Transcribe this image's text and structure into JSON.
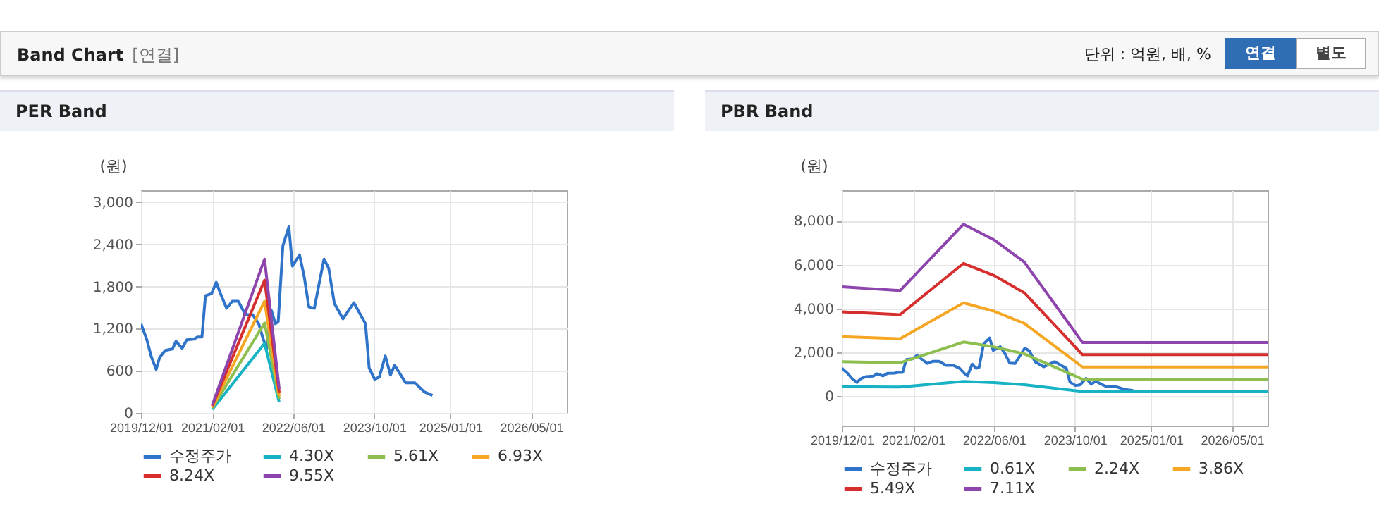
{
  "chart_data": [
    {
      "type": "other",
      "title": "Band Chart",
      "subtitle": "[연결]",
      "annotations": [
        "단위 : 억원, 배, %",
        "연결",
        "별도"
      ]
    },
    {
      "type": "line",
      "title": "PER Band",
      "ylabel": "(원)",
      "xlim": [
        "2019-12-01",
        "2026-12-01"
      ],
      "xticks": [
        {
          "value": "2019-12-01",
          "label": "2019/12/01"
        },
        {
          "value": "2021-02-01",
          "label": "2021/02/01"
        },
        {
          "value": "2022-06-01",
          "label": "2022/06/01"
        },
        {
          "value": "2023-10-01",
          "label": "2023/10/01"
        },
        {
          "value": "2025-01-01",
          "label": "2025/01/01"
        },
        {
          "value": "2026-05-01",
          "label": "2026/05/01"
        }
      ],
      "ylim": [
        0,
        3170
      ],
      "yticks": [
        {
          "value": 0,
          "label": "0"
        },
        {
          "value": 600,
          "label": "600"
        },
        {
          "value": 1200,
          "label": "1,200"
        },
        {
          "value": 1800,
          "label": "1,800"
        },
        {
          "value": 2400,
          "label": "2,400"
        },
        {
          "value": 3000,
          "label": "3,000"
        }
      ],
      "grid": true,
      "legend": "bottom",
      "series": [
        {
          "name": "수정주가",
          "color": "#2f74c9",
          "x": [
            "2019-12-01",
            "2020-01-04",
            "2020-02-01",
            "2020-03-01",
            "2020-03-22",
            "2020-04-25",
            "2020-06-07",
            "2020-06-28",
            "2020-08-04",
            "2020-09-01",
            "2020-10-13",
            "2020-11-04",
            "2020-12-01",
            "2020-12-22",
            "2021-01-28",
            "2021-02-25",
            "2021-03-22",
            "2021-04-28",
            "2021-06-01",
            "2021-07-07",
            "2021-08-19",
            "2021-10-01",
            "2021-11-07",
            "2021-12-04",
            "2021-12-25",
            "2022-01-22",
            "2022-02-15",
            "2022-03-04",
            "2022-04-01",
            "2022-05-07",
            "2022-05-28",
            "2022-07-10",
            "2022-08-07",
            "2022-09-04",
            "2022-10-07",
            "2022-11-07",
            "2022-12-04",
            "2023-01-01",
            "2023-02-04",
            "2023-03-28",
            "2023-06-01",
            "2023-08-10",
            "2023-09-01",
            "2023-10-04",
            "2023-11-01",
            "2023-12-07",
            "2024-01-07",
            "2024-02-01",
            "2024-04-07",
            "2024-06-01",
            "2024-07-28",
            "2024-09-15"
          ],
          "values": [
            1270,
            1050,
            800,
            620,
            790,
            890,
            910,
            1020,
            920,
            1040,
            1050,
            1080,
            1080,
            1670,
            1700,
            1860,
            1700,
            1490,
            1590,
            1590,
            1400,
            1400,
            1270,
            1050,
            920,
            1460,
            1270,
            1300,
            2380,
            2650,
            2090,
            2250,
            1940,
            1510,
            1490,
            1870,
            2190,
            2060,
            1560,
            1340,
            1570,
            1270,
            640,
            480,
            510,
            810,
            540,
            680,
            430,
            430,
            300,
            250
          ]
        },
        {
          "name": "4.30X",
          "color": "#17b3c4",
          "x": [
            "2021-02-01",
            "2021-12-12",
            "2022-03-10"
          ],
          "values": [
            50,
            990,
            150
          ]
        },
        {
          "name": "5.61X",
          "color": "#8cbf4f",
          "x": [
            "2021-02-01",
            "2021-12-12",
            "2022-03-10"
          ],
          "values": [
            70,
            1280,
            200
          ]
        },
        {
          "name": "6.93X",
          "color": "#f5a623",
          "x": [
            "2021-02-01",
            "2021-12-12",
            "2022-03-10"
          ],
          "values": [
            80,
            1590,
            240
          ]
        },
        {
          "name": "8.24X",
          "color": "#d62d2d",
          "x": [
            "2021-02-01",
            "2021-12-12",
            "2022-03-10"
          ],
          "values": [
            100,
            1890,
            290
          ]
        },
        {
          "name": "9.55X",
          "color": "#8e44ad",
          "x": [
            "2021-02-01",
            "2021-12-12",
            "2022-03-10"
          ],
          "values": [
            110,
            2190,
            340
          ]
        }
      ]
    },
    {
      "type": "line",
      "title": "PBR Band",
      "ylabel": "(원)",
      "xlim": [
        "2019-12-01",
        "2026-12-01"
      ],
      "xticks": [
        {
          "value": "2019-12-01",
          "label": "2019/12/01"
        },
        {
          "value": "2021-02-01",
          "label": "2021/02/01"
        },
        {
          "value": "2022-06-01",
          "label": "2022/06/01"
        },
        {
          "value": "2023-10-01",
          "label": "2023/10/01"
        },
        {
          "value": "2025-01-01",
          "label": "2025/01/01"
        },
        {
          "value": "2026-05-01",
          "label": "2026/05/01"
        }
      ],
      "ylim": [
        -1350,
        9400
      ],
      "yticks": [
        {
          "value": 0,
          "label": "0"
        },
        {
          "value": 2000,
          "label": "2,000"
        },
        {
          "value": 4000,
          "label": "4,000"
        },
        {
          "value": 6000,
          "label": "6,000"
        },
        {
          "value": 8000,
          "label": "8,000"
        }
      ],
      "grid": true,
      "legend": "bottom",
      "series": [
        {
          "name": "수정주가",
          "color": "#2f74c9",
          "x": [
            "2019-12-01",
            "2020-01-04",
            "2020-02-01",
            "2020-03-01",
            "2020-03-22",
            "2020-04-25",
            "2020-06-07",
            "2020-06-28",
            "2020-08-04",
            "2020-09-01",
            "2020-10-13",
            "2020-11-04",
            "2020-12-01",
            "2020-12-22",
            "2021-01-28",
            "2021-02-25",
            "2021-03-22",
            "2021-04-28",
            "2021-06-01",
            "2021-07-07",
            "2021-08-19",
            "2021-10-01",
            "2021-11-07",
            "2021-12-04",
            "2021-12-25",
            "2022-01-22",
            "2022-02-15",
            "2022-03-04",
            "2022-04-01",
            "2022-05-07",
            "2022-05-28",
            "2022-07-10",
            "2022-08-07",
            "2022-09-04",
            "2022-10-07",
            "2022-11-07",
            "2022-12-04",
            "2023-01-01",
            "2023-02-04",
            "2023-03-28",
            "2023-06-01",
            "2023-08-10",
            "2023-09-01",
            "2023-10-04",
            "2023-11-01",
            "2023-12-07",
            "2024-01-07",
            "2024-02-01",
            "2024-04-07",
            "2024-06-01",
            "2024-07-28",
            "2024-09-15"
          ],
          "values": [
            1270,
            1050,
            800,
            620,
            790,
            890,
            910,
            1020,
            920,
            1040,
            1050,
            1080,
            1080,
            1670,
            1700,
            1860,
            1700,
            1490,
            1590,
            1590,
            1400,
            1400,
            1270,
            1050,
            920,
            1460,
            1270,
            1300,
            2380,
            2650,
            2090,
            2250,
            1940,
            1510,
            1490,
            1870,
            2190,
            2060,
            1560,
            1340,
            1570,
            1270,
            640,
            480,
            510,
            810,
            540,
            680,
            430,
            430,
            300,
            250
          ]
        },
        {
          "name": "0.61X",
          "color": "#17b3c4",
          "x": [
            "2019-12-01",
            "2020-11-15",
            "2021-12-01",
            "2022-06-01",
            "2022-12-01",
            "2023-11-15",
            "2026-12-01"
          ],
          "values": [
            430,
            410,
            670,
            610,
            520,
            210,
            210
          ]
        },
        {
          "name": "2.24X",
          "color": "#8cbf4f",
          "x": [
            "2019-12-01",
            "2020-11-15",
            "2021-12-01",
            "2022-06-01",
            "2022-12-01",
            "2023-11-15",
            "2026-12-01"
          ],
          "values": [
            1570,
            1520,
            2470,
            2250,
            1930,
            770,
            770
          ]
        },
        {
          "name": "3.86X",
          "color": "#f5a623",
          "x": [
            "2019-12-01",
            "2020-11-15",
            "2021-12-01",
            "2022-06-01",
            "2022-12-01",
            "2023-11-15",
            "2026-12-01"
          ],
          "values": [
            2710,
            2620,
            4260,
            3880,
            3320,
            1330,
            1330
          ]
        },
        {
          "name": "5.49X",
          "color": "#d62d2d",
          "x": [
            "2019-12-01",
            "2020-11-15",
            "2021-12-01",
            "2022-06-01",
            "2022-12-01",
            "2023-11-15",
            "2026-12-01"
          ],
          "values": [
            3850,
            3720,
            6060,
            5510,
            4720,
            1890,
            1890
          ]
        },
        {
          "name": "7.11X",
          "color": "#8e44ad",
          "x": [
            "2019-12-01",
            "2020-11-15",
            "2021-12-01",
            "2022-06-01",
            "2022-12-01",
            "2023-11-15",
            "2026-12-01"
          ],
          "values": [
            4990,
            4820,
            7850,
            7140,
            6120,
            2450,
            2450
          ]
        }
      ]
    }
  ]
}
